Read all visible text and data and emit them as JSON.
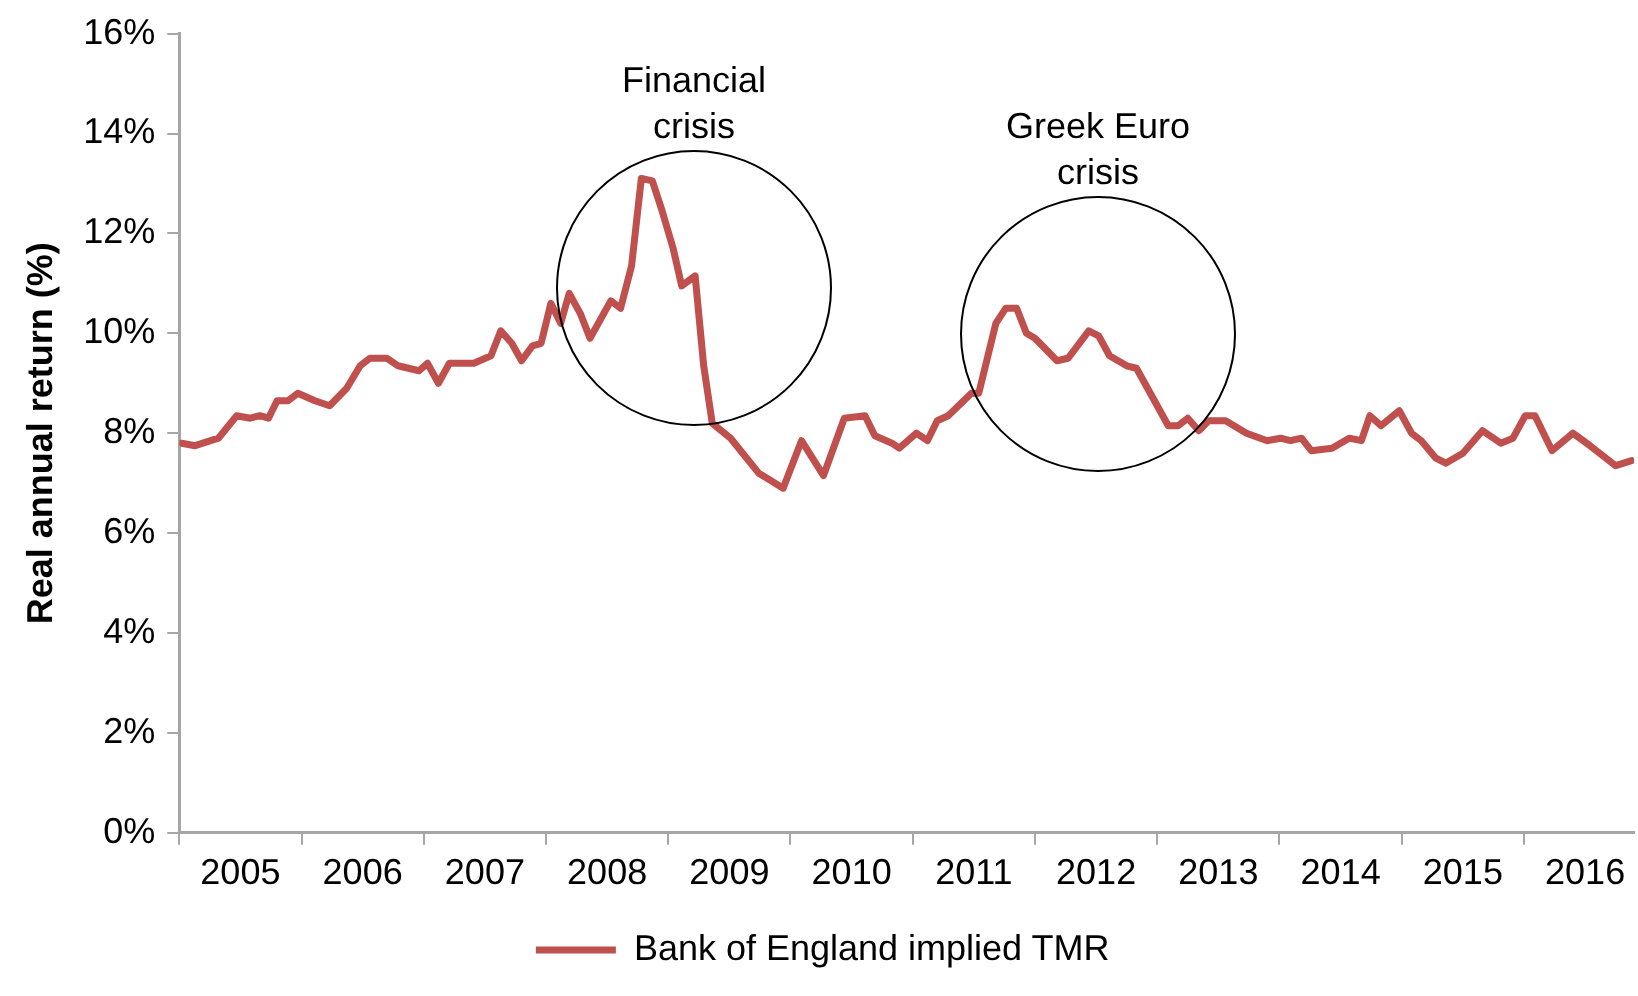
{
  "chart_data": {
    "type": "line",
    "ylabel": "Real annual return (%)",
    "xlim": [
      2005,
      2016.9
    ],
    "xticks": [
      {
        "value": 2005,
        "label": null
      },
      {
        "value": 2005.5,
        "label": "2005"
      },
      {
        "value": 2006,
        "label": null
      },
      {
        "value": 2006.5,
        "label": "2006"
      },
      {
        "value": 2007,
        "label": null
      },
      {
        "value": 2007.5,
        "label": "2007"
      },
      {
        "value": 2008,
        "label": null
      },
      {
        "value": 2008.5,
        "label": "2008"
      },
      {
        "value": 2009,
        "label": null
      },
      {
        "value": 2009.5,
        "label": "2009"
      },
      {
        "value": 2010,
        "label": null
      },
      {
        "value": 2010.5,
        "label": "2010"
      },
      {
        "value": 2011,
        "label": null
      },
      {
        "value": 2011.5,
        "label": "2011"
      },
      {
        "value": 2012,
        "label": null
      },
      {
        "value": 2012.5,
        "label": "2012"
      },
      {
        "value": 2013,
        "label": null
      },
      {
        "value": 2013.5,
        "label": "2013"
      },
      {
        "value": 2014,
        "label": null
      },
      {
        "value": 2014.5,
        "label": "2014"
      },
      {
        "value": 2015,
        "label": null
      },
      {
        "value": 2015.5,
        "label": "2015"
      },
      {
        "value": 2016,
        "label": null
      },
      {
        "value": 2016.5,
        "label": "2016"
      }
    ],
    "ylim": [
      0,
      16
    ],
    "yticks": [
      {
        "value": 0,
        "label": "0%"
      },
      {
        "value": 2,
        "label": "2%"
      },
      {
        "value": 4,
        "label": "4%"
      },
      {
        "value": 6,
        "label": "6%"
      },
      {
        "value": 8,
        "label": "8%"
      },
      {
        "value": 10,
        "label": "10%"
      },
      {
        "value": 12,
        "label": "12%"
      },
      {
        "value": 14,
        "label": "14%"
      },
      {
        "value": 16,
        "label": "16%"
      }
    ],
    "grid": false,
    "legend": "bottom",
    "marker": "none",
    "line_style": "solid",
    "annotations": [
      "Financial crisis",
      "Greek Euro crisis"
    ],
    "series": [
      {
        "name": "Bank of England implied TMR",
        "color": "#c0504d",
        "x": [
          2005.02,
          2005.13,
          2005.32,
          2005.47,
          2005.58,
          2005.66,
          2005.73,
          2005.8,
          2005.89,
          2005.97,
          2006.11,
          2006.23,
          2006.37,
          2006.48,
          2006.56,
          2006.7,
          2006.79,
          2006.96,
          2007.03,
          2007.12,
          2007.21,
          2007.41,
          2007.55,
          2007.63,
          2007.72,
          2007.8,
          2007.89,
          2007.96,
          2008.04,
          2008.12,
          2008.19,
          2008.28,
          2008.36,
          2008.53,
          2008.61,
          2008.7,
          2008.78,
          2008.87,
          2008.95,
          2009.04,
          2009.11,
          2009.22,
          2009.29,
          2009.36,
          2009.51,
          2009.74,
          2009.94,
          2010.09,
          2010.27,
          2010.44,
          2010.61,
          2010.69,
          2010.83,
          2010.89,
          2011.03,
          2011.12,
          2011.2,
          2011.29,
          2011.48,
          2011.54,
          2011.68,
          2011.76,
          2011.85,
          2011.93,
          2012.0,
          2012.18,
          2012.27,
          2012.44,
          2012.52,
          2012.61,
          2012.75,
          2012.83,
          2013.0,
          2013.09,
          2013.17,
          2013.25,
          2013.34,
          2013.42,
          2013.56,
          2013.73,
          2013.9,
          2014.01,
          2014.09,
          2014.18,
          2014.26,
          2014.43,
          2014.57,
          2014.67,
          2014.74,
          2014.83,
          2014.98,
          2015.08,
          2015.16,
          2015.28,
          2015.36,
          2015.5,
          2015.66,
          2015.81,
          2015.91,
          2016.01,
          2016.09,
          2016.23,
          2016.4,
          2016.54,
          2016.75,
          2016.88
        ],
        "values": [
          7.8,
          7.75,
          7.9,
          8.35,
          8.3,
          8.35,
          8.3,
          8.65,
          8.65,
          8.8,
          8.65,
          8.55,
          8.9,
          9.35,
          9.5,
          9.5,
          9.35,
          9.25,
          9.4,
          9.0,
          9.4,
          9.4,
          9.55,
          10.05,
          9.8,
          9.45,
          9.75,
          9.8,
          10.6,
          10.2,
          10.8,
          10.4,
          9.9,
          10.65,
          10.5,
          11.35,
          13.1,
          13.05,
          12.45,
          11.7,
          10.95,
          11.15,
          9.35,
          8.2,
          7.9,
          7.2,
          6.9,
          7.85,
          7.15,
          8.3,
          8.35,
          7.95,
          7.8,
          7.7,
          8.0,
          7.85,
          8.25,
          8.35,
          8.8,
          8.8,
          10.2,
          10.5,
          10.5,
          10.0,
          9.9,
          9.45,
          9.5,
          10.05,
          9.95,
          9.55,
          9.35,
          9.3,
          8.55,
          8.15,
          8.15,
          8.3,
          8.05,
          8.25,
          8.25,
          8.0,
          7.85,
          7.9,
          7.85,
          7.9,
          7.65,
          7.7,
          7.9,
          7.85,
          8.35,
          8.15,
          8.45,
          8.0,
          7.85,
          7.5,
          7.4,
          7.6,
          8.05,
          7.8,
          7.9,
          8.35,
          8.35,
          7.65,
          8.0,
          7.75,
          7.35,
          7.45
        ]
      }
    ]
  }
}
